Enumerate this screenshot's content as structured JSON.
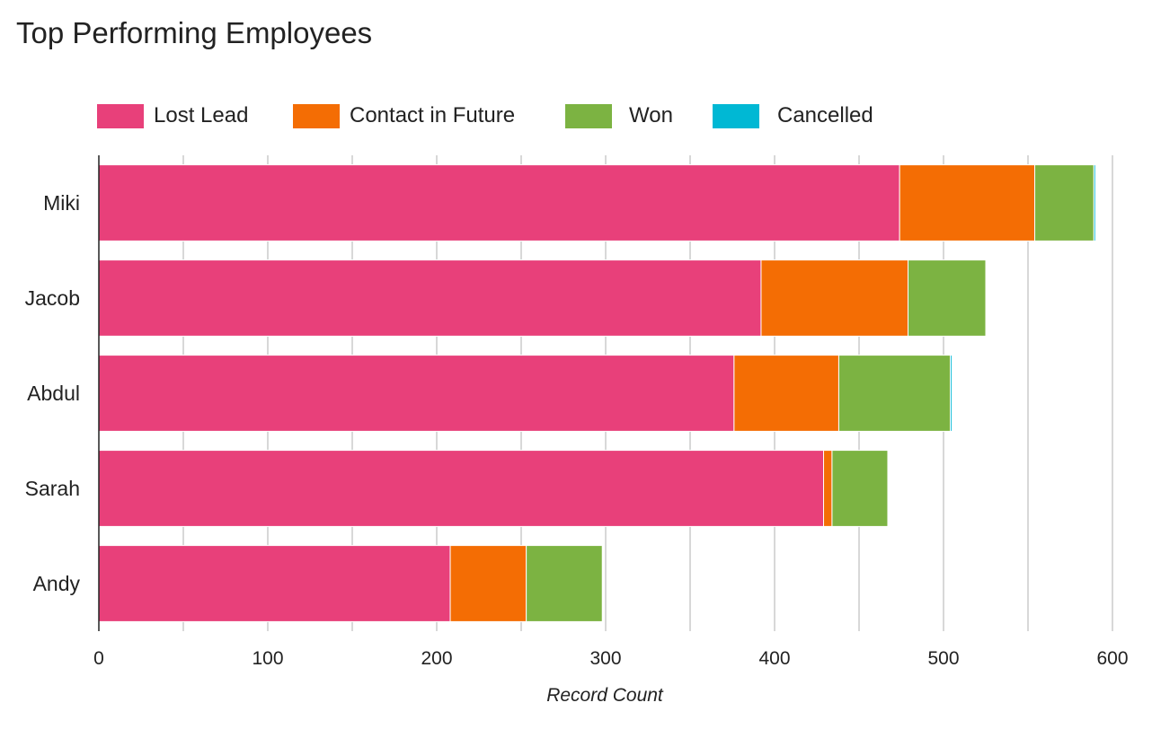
{
  "chart_data": {
    "type": "bar",
    "orientation": "horizontal",
    "stacked": true,
    "title": "Top Performing Employees",
    "xlabel": "Record Count",
    "ylabel": "",
    "xlim": [
      0,
      600
    ],
    "xticks": [
      "0",
      "100",
      "200",
      "300",
      "400",
      "500",
      "600"
    ],
    "grid": true,
    "legend_position": "top",
    "categories": [
      "Miki",
      "Jacob",
      "Abdul",
      "Sarah",
      "Andy"
    ],
    "series": [
      {
        "name": "Lost Lead",
        "color": "#e8407a",
        "values": [
          474,
          392,
          376,
          429,
          208
        ]
      },
      {
        "name": "Contact in Future",
        "color": "#f46d04",
        "values": [
          80,
          87,
          62,
          5,
          45
        ]
      },
      {
        "name": "Won",
        "color": "#7cb342",
        "values": [
          35,
          46,
          66,
          33,
          45
        ]
      },
      {
        "name": "Cancelled",
        "color": "#00b8d4",
        "values": [
          1,
          0,
          1,
          0,
          0
        ]
      }
    ]
  }
}
